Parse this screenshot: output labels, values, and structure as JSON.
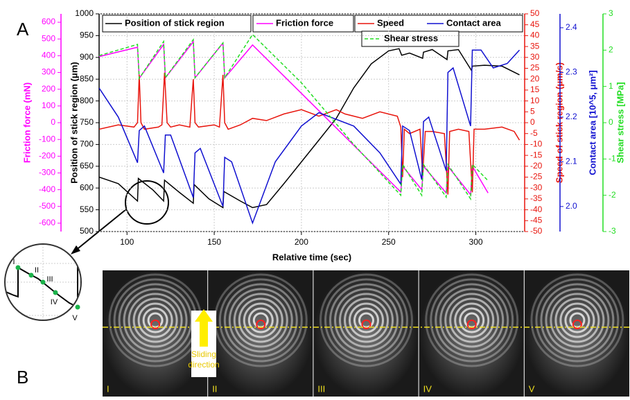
{
  "panel_labels": [
    "A",
    "B"
  ],
  "chart_data": {
    "type": "line",
    "xlabel": "Relative time (sec)",
    "xlim": [
      84,
      328
    ],
    "xticks": [
      100,
      150,
      200,
      250,
      300
    ],
    "grid": true,
    "legend": "top",
    "y_axes": [
      {
        "label": "Position of stick region (μm)",
        "ylim": [
          500,
          1000
        ],
        "yticks": [
          500,
          550,
          600,
          650,
          700,
          750,
          800,
          850,
          900,
          950,
          1000
        ],
        "color": "#000000",
        "side": "left"
      },
      {
        "label": "Friction force (mN)",
        "ylim": [
          -650,
          650
        ],
        "yticks": [
          -600,
          -500,
          -400,
          -300,
          -200,
          -100,
          0,
          100,
          200,
          300,
          400,
          500,
          600
        ],
        "color": "#ff00ff",
        "side": "left"
      },
      {
        "label": "Speed of stick region (μm/s)",
        "ylim": [
          -50,
          50
        ],
        "yticks": [
          -50,
          -45,
          -40,
          -35,
          -30,
          -25,
          -20,
          -15,
          -10,
          -5,
          0,
          5,
          10,
          15,
          20,
          25,
          30,
          35,
          40,
          45,
          50
        ],
        "color": "#e8140c",
        "side": "right"
      },
      {
        "label": "Contact area [10^5, μm²]",
        "ylim": [
          1.944,
          2.431
        ],
        "yticks": [
          {
            "value": 2,
            "label": "2.0"
          },
          2.1,
          2.2,
          2.3,
          2.4
        ],
        "color": "#1010d0",
        "side": "right"
      },
      {
        "label": "Shear stress [MPa]",
        "ylim": [
          -3,
          3
        ],
        "yticks": [
          -3,
          -2,
          -1,
          0,
          1,
          2,
          3
        ],
        "color": "#22dd22",
        "side": "right"
      }
    ],
    "series": [
      {
        "name": "Position of stick region",
        "color": "#000000",
        "axis": 0,
        "dash": false,
        "x": [
          84,
          95,
          106,
          106.5,
          115,
          121,
          121.5,
          130,
          138,
          138.5,
          147,
          155,
          155.5,
          165,
          172,
          180,
          190,
          200,
          210,
          220,
          230,
          240,
          250,
          256,
          257.5,
          262,
          269.5,
          270,
          275,
          283.5,
          284,
          290,
          297.5,
          298,
          305,
          315,
          325
        ],
        "values": [
          625,
          610,
          570,
          622,
          595,
          570,
          618,
          590,
          565,
          608,
          575,
          555,
          592,
          570,
          555,
          562,
          610,
          660,
          710,
          760,
          830,
          885,
          915,
          920,
          905,
          910,
          898,
          912,
          918,
          895,
          915,
          918,
          870,
          880,
          882,
          880,
          860
        ]
      },
      {
        "name": "Friction force",
        "color": "#ff00ff",
        "axis": 1,
        "dash": false,
        "x": [
          84,
          106,
          107,
          121,
          122,
          138,
          139,
          155,
          156,
          172,
          200,
          230,
          257,
          258,
          269,
          270,
          283,
          284,
          297,
          298,
          307
        ],
        "values": [
          395,
          451,
          265,
          468,
          268,
          484,
          268,
          476,
          268,
          464,
          175,
          -135,
          -414,
          -260,
          -400,
          -260,
          -420,
          -260,
          -430,
          -260,
          -420
        ]
      },
      {
        "name": "Speed",
        "color": "#e8140c",
        "axis": 2,
        "dash": false,
        "x": [
          84,
          95,
          104,
          106,
          107,
          108,
          110,
          118,
          120,
          121.5,
          123,
          125,
          130,
          136,
          138,
          139,
          141,
          150,
          153,
          155,
          156,
          158,
          165,
          172,
          180,
          190,
          200,
          210,
          220,
          225,
          235,
          245,
          255,
          257,
          258,
          259,
          262,
          268,
          269.5,
          271,
          275,
          282,
          284,
          285,
          290,
          296,
          298,
          299,
          305,
          315,
          322,
          325
        ],
        "values": [
          -3,
          -1,
          -2,
          0,
          22,
          0,
          -3,
          -2,
          -1,
          23,
          0,
          -2,
          -1,
          -2,
          20,
          0,
          -2,
          -1,
          -2,
          22,
          0,
          -3,
          -1,
          2,
          1,
          4,
          6,
          3,
          6,
          4,
          2,
          5,
          3,
          -2,
          -25,
          -3,
          -5,
          -3,
          -24,
          -4,
          -4,
          -5,
          -33,
          -4,
          -3,
          -4,
          -32,
          -3,
          -3,
          -2,
          -4,
          -8
        ]
      },
      {
        "name": "Contact area",
        "color": "#1010d0",
        "axis": 3,
        "dash": false,
        "x": [
          84,
          95,
          106,
          107,
          110,
          121,
          122,
          125,
          138,
          139,
          142,
          155,
          156,
          160,
          172,
          185,
          200,
          210,
          230,
          245,
          257,
          258,
          262,
          269,
          270,
          273,
          283,
          284,
          287,
          297,
          298,
          303,
          310,
          318,
          325
        ],
        "values": [
          2.265,
          2.2,
          2.098,
          2.17,
          2.18,
          2.075,
          2.16,
          2.16,
          2.02,
          2.12,
          2.13,
          2.0,
          2.11,
          2.1,
          1.963,
          2.1,
          2.18,
          2.21,
          2.18,
          2.12,
          2.05,
          2.18,
          2.17,
          2.06,
          2.19,
          2.2,
          2.08,
          2.3,
          2.31,
          2.18,
          2.35,
          2.35,
          2.31,
          2.32,
          2.35
        ]
      },
      {
        "name": "Shear stress",
        "color": "#22dd22",
        "axis": 4,
        "dash": true,
        "x": [
          84,
          106,
          107,
          121,
          122,
          138,
          139,
          155,
          156,
          172,
          200,
          230,
          257,
          258,
          269,
          270,
          283,
          284,
          297,
          298,
          307
        ],
        "values": [
          1.85,
          2.16,
          1.22,
          2.24,
          1.24,
          2.29,
          1.24,
          2.2,
          1.24,
          2.43,
          1.1,
          -0.6,
          -2.0,
          -1.15,
          -2.0,
          -1.15,
          -2.05,
          -1.15,
          -2.1,
          -1.15,
          -1.6
        ]
      }
    ]
  },
  "inset": {
    "labels": [
      "I",
      "II",
      "III",
      "IV",
      "V"
    ]
  },
  "images": {
    "frames": [
      "I",
      "II",
      "III",
      "IV",
      "V"
    ],
    "arrow_label": [
      "Sliding",
      "direction"
    ]
  }
}
